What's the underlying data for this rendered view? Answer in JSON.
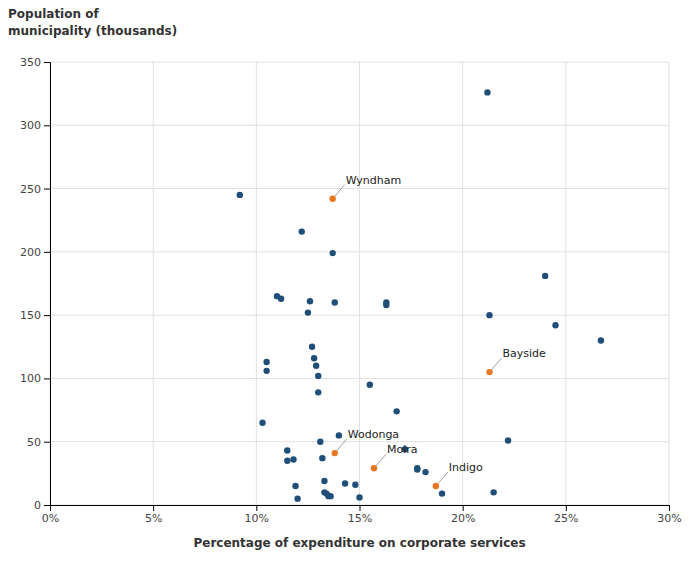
{
  "chart_data": {
    "type": "scatter",
    "ylabel": [
      "Population of",
      "municipality (thousands)"
    ],
    "xlabel": "Percentage of expenditure on corporate services",
    "xlim": [
      0.0,
      0.3
    ],
    "ylim": [
      0,
      350
    ],
    "xticks": [
      {
        "value": 0.0,
        "label": "0%"
      },
      {
        "value": 0.05,
        "label": "5%"
      },
      {
        "value": 0.1,
        "label": "10%"
      },
      {
        "value": 0.15,
        "label": "15%"
      },
      {
        "value": 0.2,
        "label": "20%"
      },
      {
        "value": 0.25,
        "label": "25%"
      },
      {
        "value": 0.3,
        "label": "30%"
      }
    ],
    "yticks": [
      0,
      50,
      100,
      150,
      200,
      250,
      300,
      350
    ],
    "grid": true,
    "series": [
      {
        "color": "#1F4E79",
        "x": [
          0.092,
          0.105,
          0.105,
          0.103,
          0.11,
          0.112,
          0.115,
          0.115,
          0.118,
          0.119,
          0.12,
          0.122,
          0.125,
          0.126,
          0.127,
          0.128,
          0.129,
          0.13,
          0.13,
          0.131,
          0.132,
          0.133,
          0.133,
          0.134,
          0.135,
          0.136,
          0.137,
          0.138,
          0.14,
          0.143,
          0.148,
          0.15,
          0.155,
          0.163,
          0.163,
          0.168,
          0.172,
          0.178,
          0.178,
          0.182,
          0.19,
          0.212,
          0.213,
          0.215,
          0.222,
          0.24,
          0.245,
          0.267
        ],
        "values": [
          245,
          113,
          106,
          65,
          165,
          163,
          43,
          35,
          36,
          15,
          5,
          216,
          152,
          161,
          125,
          116,
          110,
          102,
          89,
          50,
          37,
          19,
          10,
          9,
          7,
          7,
          199,
          160,
          55,
          17,
          16,
          6,
          95,
          160,
          158,
          74,
          44,
          29,
          28,
          26,
          9,
          326,
          150,
          10,
          51,
          181,
          142,
          130
        ]
      },
      {
        "color": "#E87722",
        "x": [
          0.137,
          0.138,
          0.157,
          0.187,
          0.213
        ],
        "values": [
          242,
          41,
          29,
          15,
          105
        ]
      }
    ],
    "annotations": [
      {
        "text": "Wyndham",
        "x": 0.137,
        "y": 242
      },
      {
        "text": "Wodonga",
        "x": 0.138,
        "y": 41
      },
      {
        "text": "Moira",
        "x": 0.157,
        "y": 29
      },
      {
        "text": "Indigo",
        "x": 0.187,
        "y": 15
      },
      {
        "text": "Bayside",
        "x": 0.213,
        "y": 105
      }
    ]
  }
}
